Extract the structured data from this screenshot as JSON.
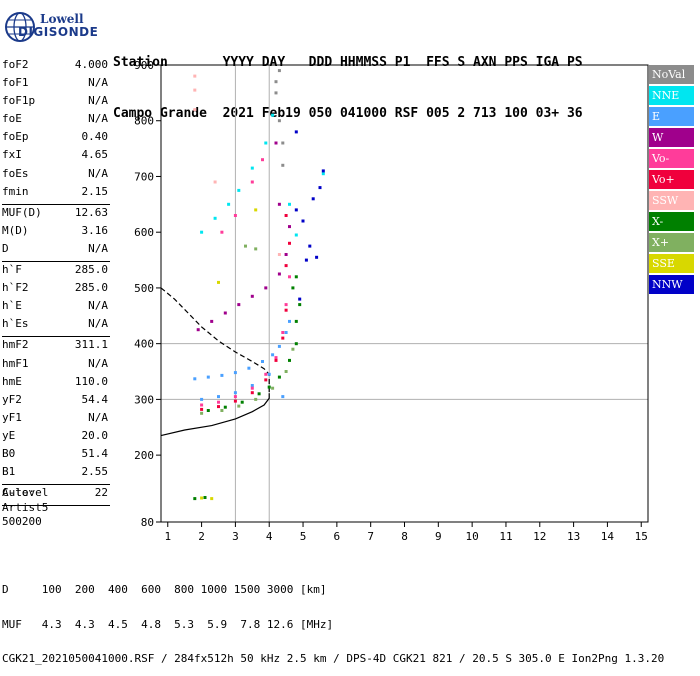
{
  "logo": {
    "line1": "Lowell",
    "line2": "DIGISONDE"
  },
  "header": {
    "line1": "Station       YYYY DAY   DDD HHMMSS P1  FFS S AXN PPS IGA PS",
    "line2": "Campo Grande  2021 Feb19 050 041000 RSF 005 2 713 100 03+ 36"
  },
  "params": [
    {
      "label": "foF2",
      "value": "4.000"
    },
    {
      "label": "foF1",
      "value": "N/A"
    },
    {
      "label": "foF1p",
      "value": "N/A"
    },
    {
      "label": "foE",
      "value": "N/A"
    },
    {
      "label": "foEp",
      "value": "0.40"
    },
    {
      "label": "fxI",
      "value": "4.65"
    },
    {
      "label": "foEs",
      "value": "N/A"
    },
    {
      "label": "fmin",
      "value": "2.15"
    },
    {
      "sep": true
    },
    {
      "label": "MUF(D)",
      "value": "12.63"
    },
    {
      "label": "M(D)",
      "value": "3.16"
    },
    {
      "label": "D",
      "value": "N/A"
    },
    {
      "sep": true
    },
    {
      "label": "h`F",
      "value": "285.0"
    },
    {
      "label": "h`F2",
      "value": "285.0"
    },
    {
      "label": "h`E",
      "value": "N/A"
    },
    {
      "label": "h`Es",
      "value": "N/A"
    },
    {
      "sep": true
    },
    {
      "label": "hmF2",
      "value": "311.1"
    },
    {
      "label": "hmF1",
      "value": "N/A"
    },
    {
      "label": "hmE",
      "value": "110.0"
    },
    {
      "label": "yF2",
      "value": "54.4"
    },
    {
      "label": "yF1",
      "value": "N/A"
    },
    {
      "label": "yE",
      "value": "20.0"
    },
    {
      "label": "B0",
      "value": "51.4"
    },
    {
      "label": "B1",
      "value": "2.55"
    },
    {
      "sep": true
    },
    {
      "label": "C-level",
      "value": "22"
    },
    {
      "sep": true
    }
  ],
  "auto": {
    "line1": "Auto:",
    "line2": "Artist5",
    "line3": "500200"
  },
  "legend": [
    {
      "label": "NoVal",
      "color": "#8c8c8c"
    },
    {
      "label": "NNE",
      "color": "#00e6f0"
    },
    {
      "label": "E",
      "color": "#4aa0ff"
    },
    {
      "label": "W",
      "color": "#a0008c"
    },
    {
      "label": "Vo-",
      "color": "#ff3c9a"
    },
    {
      "label": "Vo+",
      "color": "#f0003c"
    },
    {
      "label": "SSW",
      "color": "#ffb4b4"
    },
    {
      "label": "X-",
      "color": "#008000"
    },
    {
      "label": "X+",
      "color": "#80b060"
    },
    {
      "label": "SSE",
      "color": "#d8d800"
    },
    {
      "label": "NNW",
      "color": "#0000c8"
    }
  ],
  "footer": {
    "line1": "D     100  200  400  600  800 1000 1500 3000 [km]",
    "line2": "MUF   4.3  4.3  4.5  4.8  5.3  5.9  7.8 12.6 [MHz]",
    "line3": "CGK21_2021050041000.RSF / 284fx512h 50 kHz 2.5 km / DPS-4D CGK21 821 / 20.5 S 305.0 E Ion2Png 1.3.20"
  },
  "chart_data": {
    "type": "scatter",
    "title": "",
    "xlabel": "",
    "ylabel": "",
    "xlim": [
      0.8,
      15.2
    ],
    "ylim": [
      80,
      900
    ],
    "x_ticks": [
      1,
      2,
      3,
      4,
      5,
      6,
      7,
      8,
      9,
      10,
      11,
      12,
      13,
      14,
      15
    ],
    "y_ticks": [
      80,
      200,
      300,
      400,
      500,
      600,
      700,
      800,
      900
    ],
    "x_grid": [
      3,
      4
    ],
    "y_grid": [
      300,
      400
    ],
    "series": [
      {
        "name": "NNE",
        "color": "#00e6f0",
        "points": [
          [
            2.0,
            600
          ],
          [
            2.4,
            625
          ],
          [
            2.8,
            650
          ],
          [
            3.1,
            675
          ],
          [
            3.5,
            715
          ],
          [
            3.9,
            760
          ],
          [
            4.1,
            810
          ],
          [
            5.6,
            705
          ],
          [
            4.6,
            650
          ],
          [
            4.8,
            595
          ]
        ]
      },
      {
        "name": "E",
        "color": "#4aa0ff",
        "points": [
          [
            1.8,
            337
          ],
          [
            2.2,
            340
          ],
          [
            2.6,
            343
          ],
          [
            3.0,
            348
          ],
          [
            3.4,
            356
          ],
          [
            3.8,
            368
          ],
          [
            4.1,
            380
          ],
          [
            4.3,
            395
          ],
          [
            4.5,
            420
          ],
          [
            4.6,
            440
          ],
          [
            2.0,
            300
          ],
          [
            2.5,
            305
          ],
          [
            3.0,
            312
          ],
          [
            3.5,
            325
          ],
          [
            4.0,
            345
          ],
          [
            4.4,
            305
          ]
        ]
      },
      {
        "name": "W",
        "color": "#a0008c",
        "points": [
          [
            1.9,
            425
          ],
          [
            2.3,
            440
          ],
          [
            2.7,
            455
          ],
          [
            3.1,
            470
          ],
          [
            3.5,
            485
          ],
          [
            3.9,
            500
          ],
          [
            4.3,
            525
          ],
          [
            4.5,
            560
          ],
          [
            4.6,
            610
          ],
          [
            4.3,
            650
          ],
          [
            4.2,
            760
          ]
        ]
      },
      {
        "name": "Vo-",
        "color": "#ff3c9a",
        "points": [
          [
            2.0,
            290
          ],
          [
            2.5,
            295
          ],
          [
            3.0,
            305
          ],
          [
            3.5,
            320
          ],
          [
            3.9,
            345
          ],
          [
            4.2,
            375
          ],
          [
            4.4,
            420
          ],
          [
            4.5,
            470
          ],
          [
            4.6,
            520
          ],
          [
            2.6,
            600
          ],
          [
            3.0,
            630
          ],
          [
            3.5,
            690
          ],
          [
            3.8,
            730
          ]
        ]
      },
      {
        "name": "Vo+",
        "color": "#f0003c",
        "points": [
          [
            2.0,
            282
          ],
          [
            2.5,
            287
          ],
          [
            3.0,
            297
          ],
          [
            3.5,
            312
          ],
          [
            3.9,
            335
          ],
          [
            4.2,
            370
          ],
          [
            4.4,
            410
          ],
          [
            4.5,
            460
          ],
          [
            4.5,
            540
          ],
          [
            4.6,
            580
          ],
          [
            4.5,
            630
          ]
        ]
      },
      {
        "name": "SSW",
        "color": "#ffb4b4",
        "points": [
          [
            1.8,
            880
          ],
          [
            1.8,
            855
          ],
          [
            1.8,
            820
          ],
          [
            2.4,
            690
          ],
          [
            4.3,
            560
          ]
        ]
      },
      {
        "name": "X-",
        "color": "#008000",
        "points": [
          [
            1.8,
            122
          ],
          [
            2.1,
            124
          ],
          [
            2.2,
            280
          ],
          [
            2.7,
            286
          ],
          [
            3.2,
            295
          ],
          [
            3.7,
            310
          ],
          [
            4.0,
            322
          ],
          [
            4.3,
            340
          ],
          [
            4.6,
            370
          ],
          [
            4.8,
            400
          ],
          [
            4.8,
            440
          ],
          [
            4.9,
            470
          ],
          [
            4.7,
            500
          ],
          [
            4.8,
            520
          ]
        ]
      },
      {
        "name": "X+",
        "color": "#80b060",
        "points": [
          [
            2.0,
            275
          ],
          [
            2.6,
            280
          ],
          [
            3.1,
            288
          ],
          [
            3.6,
            300
          ],
          [
            4.1,
            320
          ],
          [
            4.5,
            350
          ],
          [
            4.7,
            390
          ],
          [
            3.3,
            575
          ],
          [
            3.6,
            570
          ]
        ]
      },
      {
        "name": "SSE",
        "color": "#d8d800",
        "points": [
          [
            2.0,
            123
          ],
          [
            2.3,
            122
          ],
          [
            2.5,
            510
          ],
          [
            3.6,
            640
          ]
        ]
      },
      {
        "name": "NNW",
        "color": "#0000c8",
        "points": [
          [
            5.1,
            550
          ],
          [
            5.2,
            575
          ],
          [
            5.4,
            555
          ],
          [
            5.0,
            620
          ],
          [
            5.3,
            660
          ],
          [
            5.5,
            680
          ],
          [
            5.6,
            710
          ],
          [
            4.8,
            640
          ],
          [
            4.9,
            480
          ],
          [
            4.8,
            780
          ]
        ]
      },
      {
        "name": "NoVal",
        "color": "#8c8c8c",
        "points": [
          [
            4.2,
            870
          ],
          [
            4.3,
            890
          ],
          [
            4.2,
            850
          ],
          [
            4.3,
            800
          ],
          [
            4.4,
            760
          ],
          [
            4.4,
            720
          ]
        ]
      }
    ],
    "profile": {
      "solid": [
        [
          0.8,
          235
        ],
        [
          1.5,
          245
        ],
        [
          2.3,
          253
        ],
        [
          3.0,
          265
        ],
        [
          3.5,
          278
        ],
        [
          3.85,
          290
        ],
        [
          4.0,
          302
        ],
        [
          4.0,
          311
        ]
      ],
      "dashed": [
        [
          0.8,
          500
        ],
        [
          1.2,
          480
        ],
        [
          1.6,
          455
        ],
        [
          2.0,
          430
        ],
        [
          2.5,
          405
        ],
        [
          3.0,
          385
        ],
        [
          3.5,
          368
        ],
        [
          3.85,
          355
        ],
        [
          4.0,
          345
        ],
        [
          4.0,
          311
        ]
      ]
    }
  }
}
